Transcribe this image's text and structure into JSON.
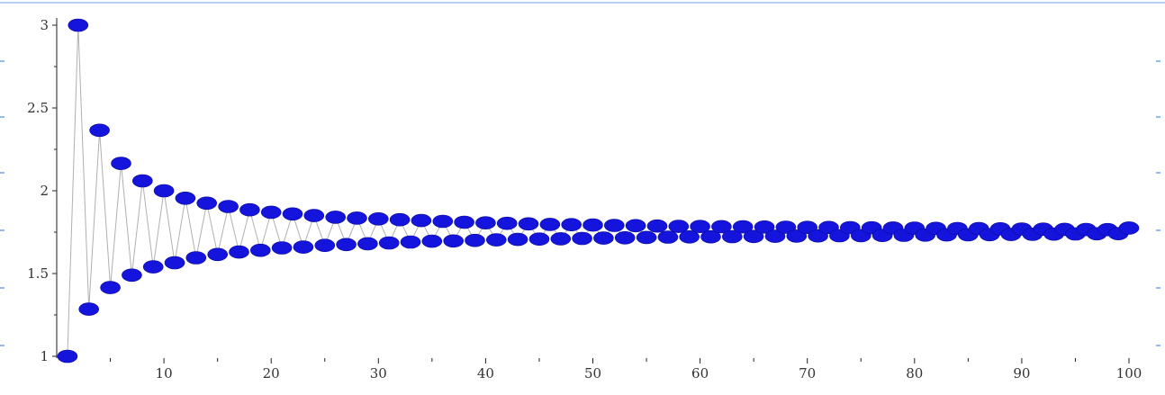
{
  "chart_data": {
    "type": "line",
    "title": "",
    "xlabel": "",
    "ylabel": "",
    "xlim": [
      0,
      100
    ],
    "ylim": [
      1,
      3
    ],
    "x_ticks": [
      10,
      20,
      30,
      40,
      50,
      60,
      70,
      80,
      90,
      100
    ],
    "y_ticks": [
      1,
      1.5,
      2,
      2.5,
      3
    ],
    "x_tick_labels": [
      "10",
      "20",
      "30",
      "40",
      "50",
      "60",
      "70",
      "80",
      "90",
      "100"
    ],
    "y_tick_labels": [
      "1",
      "1.5",
      "2",
      "2.5",
      "3"
    ],
    "grid": false,
    "legend": "none",
    "line_color": "#b0b0b0",
    "marker_color": "#1414dc",
    "marker": "circle",
    "series": [
      {
        "x": [
          1,
          2,
          3,
          4,
          5,
          6,
          7,
          8,
          9,
          10,
          11,
          12,
          13,
          14,
          15,
          16,
          17,
          18,
          19,
          20,
          21,
          22,
          23,
          24,
          25,
          26,
          27,
          28,
          29,
          30,
          31,
          32,
          33,
          34,
          35,
          36,
          37,
          38,
          39,
          40,
          41,
          42,
          43,
          44,
          45,
          46,
          47,
          48,
          49,
          50,
          51,
          52,
          53,
          54,
          55,
          56,
          57,
          58,
          59,
          60,
          61,
          62,
          63,
          64,
          65,
          66,
          67,
          68,
          69,
          70,
          71,
          72,
          73,
          74,
          75,
          76,
          77,
          78,
          79,
          80,
          81,
          82,
          83,
          84,
          85,
          86,
          87,
          88,
          89,
          90,
          91,
          92,
          93,
          94,
          95,
          96,
          97,
          98,
          99,
          100
        ],
        "y": [
          1,
          3,
          1.285,
          2.365,
          1.415,
          2.165,
          1.49,
          2.06,
          1.54,
          2.0,
          1.565,
          1.955,
          1.595,
          1.925,
          1.615,
          1.905,
          1.63,
          1.885,
          1.64,
          1.87,
          1.655,
          1.86,
          1.66,
          1.85,
          1.67,
          1.84,
          1.675,
          1.835,
          1.68,
          1.83,
          1.685,
          1.825,
          1.69,
          1.82,
          1.695,
          1.815,
          1.697,
          1.81,
          1.7,
          1.806,
          1.703,
          1.803,
          1.706,
          1.8,
          1.708,
          1.797,
          1.71,
          1.795,
          1.712,
          1.793,
          1.714,
          1.791,
          1.716,
          1.789,
          1.718,
          1.787,
          1.72,
          1.785,
          1.721,
          1.784,
          1.722,
          1.783,
          1.723,
          1.782,
          1.724,
          1.781,
          1.725,
          1.78,
          1.726,
          1.779,
          1.727,
          1.778,
          1.728,
          1.777,
          1.729,
          1.776,
          1.73,
          1.775,
          1.731,
          1.774,
          1.732,
          1.773,
          1.733,
          1.772,
          1.734,
          1.771,
          1.735,
          1.77,
          1.736,
          1.769,
          1.737,
          1.768,
          1.738,
          1.767,
          1.739,
          1.766,
          1.74,
          1.765,
          1.741,
          1.775
        ]
      }
    ]
  }
}
